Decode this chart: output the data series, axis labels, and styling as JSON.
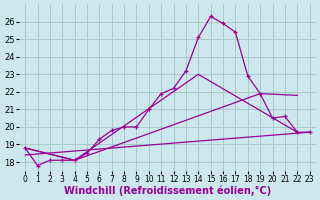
{
  "background_color": "#cce8ee",
  "grid_color": "#a8ccc8",
  "line_color": "#990099",
  "xlabel": "Windchill (Refroidissement éolien,°C)",
  "xlabel_fontsize": 7,
  "xtick_fontsize": 5.5,
  "ytick_fontsize": 6,
  "xlim": [
    -0.5,
    23.5
  ],
  "ylim": [
    17.5,
    27.0
  ],
  "yticks": [
    18,
    19,
    20,
    21,
    22,
    23,
    24,
    25,
    26
  ],
  "xticks": [
    0,
    1,
    2,
    3,
    4,
    5,
    6,
    7,
    8,
    9,
    10,
    11,
    12,
    13,
    14,
    15,
    16,
    17,
    18,
    19,
    20,
    21,
    22,
    23
  ],
  "series": [
    {
      "x": [
        0,
        1,
        2,
        3,
        4,
        5,
        6,
        7,
        8,
        9,
        10,
        11,
        12,
        13,
        14,
        15,
        16,
        17,
        18,
        19,
        20,
        21,
        22,
        23
      ],
      "y": [
        18.8,
        17.8,
        18.1,
        18.1,
        18.1,
        18.5,
        19.3,
        19.8,
        20.0,
        20.0,
        21.0,
        21.9,
        22.2,
        23.2,
        25.1,
        26.3,
        25.9,
        25.4,
        22.9,
        21.9,
        20.5,
        20.6,
        19.7,
        19.7
      ],
      "marker": true
    },
    {
      "x": [
        0,
        4,
        14,
        22
      ],
      "y": [
        18.8,
        18.1,
        23.0,
        19.7
      ],
      "marker": false
    },
    {
      "x": [
        0,
        4,
        19,
        22
      ],
      "y": [
        18.8,
        18.1,
        21.9,
        21.8
      ],
      "marker": false
    },
    {
      "x": [
        0,
        23
      ],
      "y": [
        18.4,
        19.7
      ],
      "marker": false
    }
  ]
}
